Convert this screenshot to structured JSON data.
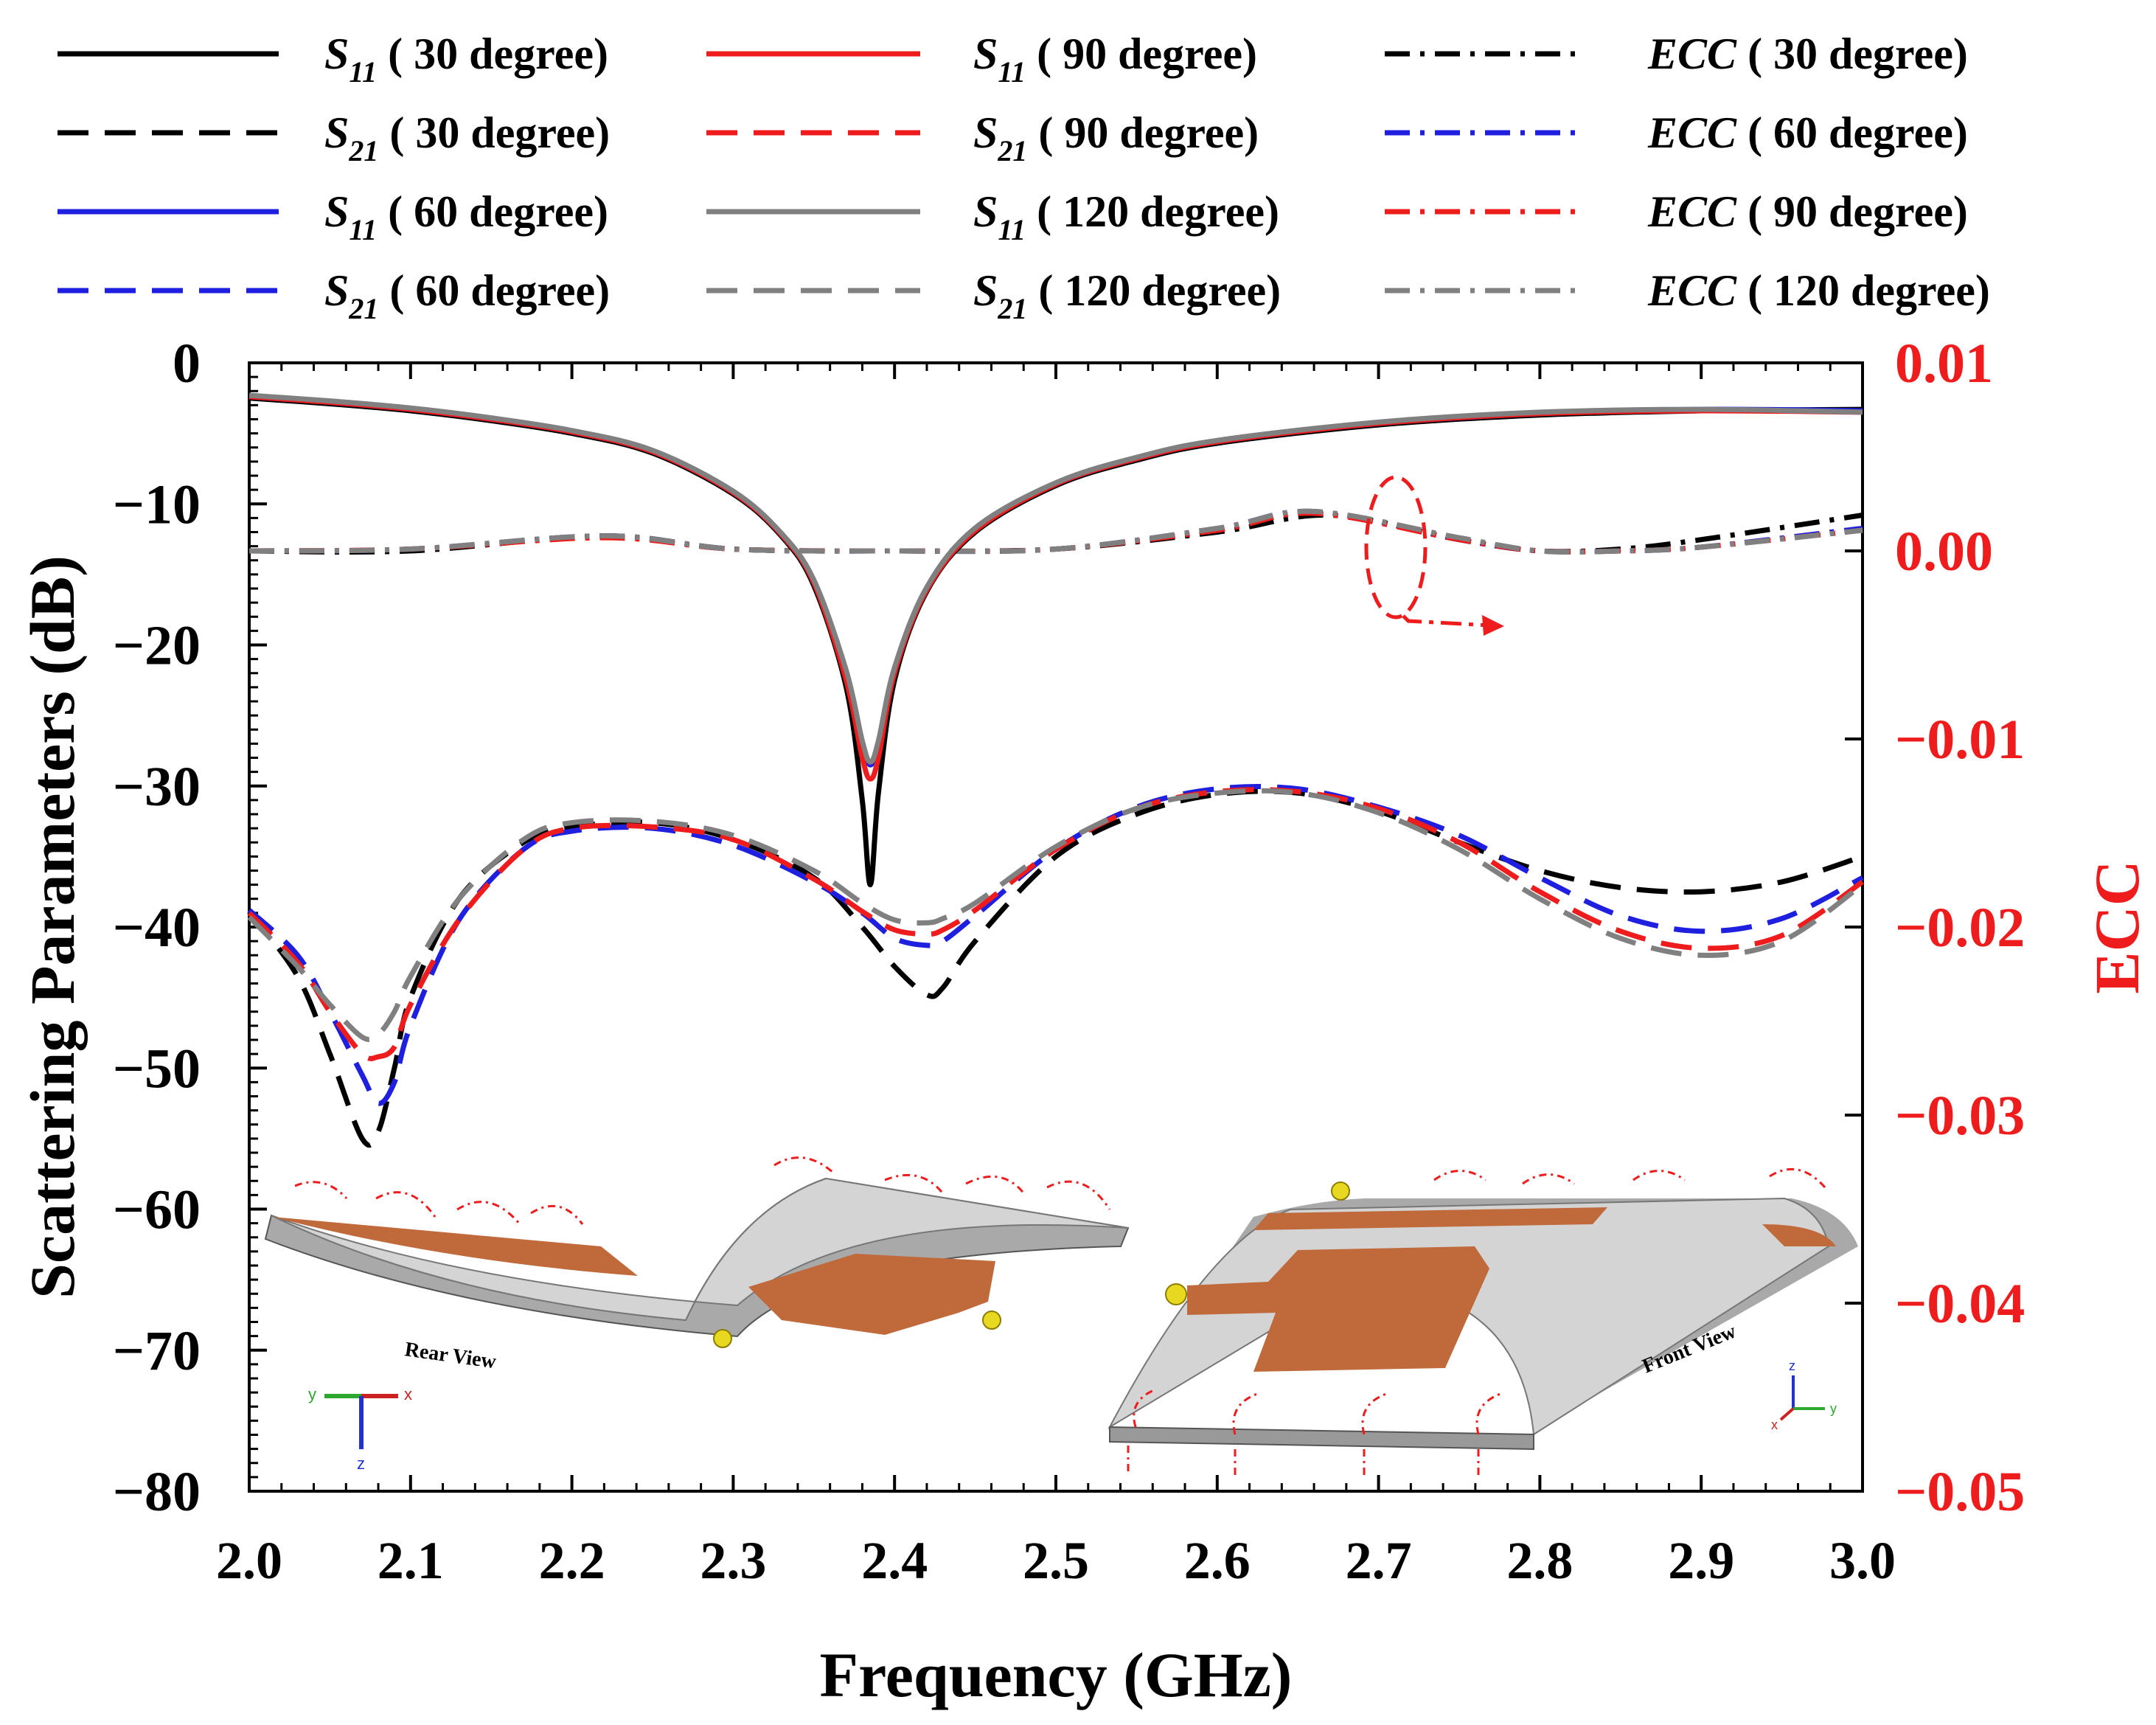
{
  "chart_data": {
    "type": "line",
    "xlabel": "Frequency (GHz)",
    "ylabel": "Scattering Parameters (dB)",
    "y2label": "ECC",
    "xlim": [
      2.0,
      3.0
    ],
    "ylim": [
      -80,
      0
    ],
    "y2lim": [
      -0.05,
      0.01
    ],
    "xticks": [
      "2.0",
      "2.1",
      "2.2",
      "2.3",
      "2.4",
      "2.5",
      "2.6",
      "2.7",
      "2.8",
      "2.9",
      "3.0"
    ],
    "yticks": [
      "0",
      "−10",
      "−20",
      "−30",
      "−40",
      "−50",
      "−60",
      "−70",
      "−80"
    ],
    "y2ticks": [
      "0.01",
      "0.00",
      "−0.01",
      "−0.02",
      "−0.03",
      "−0.04",
      "−0.05"
    ],
    "colors": {
      "c30": "#000000",
      "c60": "#1f1fe0",
      "c90": "#ee1c1c",
      "c120": "#808080",
      "ecc_axis": "#ee1c1c"
    },
    "legend": [
      {
        "param": "S",
        "sub": "11",
        "angle": "( 30 degree)",
        "color": "#000000",
        "dash": "solid"
      },
      {
        "param": "S",
        "sub": "21",
        "angle": "( 30 degree)",
        "color": "#000000",
        "dash": "dash"
      },
      {
        "param": "S",
        "sub": "11",
        "angle": "( 60 degree)",
        "color": "#1f1fe0",
        "dash": "solid"
      },
      {
        "param": "S",
        "sub": "21",
        "angle": "( 60 degree)",
        "color": "#1f1fe0",
        "dash": "dash"
      },
      {
        "param": "S",
        "sub": "11",
        "angle": "( 90 degree)",
        "color": "#ee1c1c",
        "dash": "solid"
      },
      {
        "param": "S",
        "sub": "21",
        "angle": "( 90 degree)",
        "color": "#ee1c1c",
        "dash": "dash"
      },
      {
        "param": "S",
        "sub": "11",
        "angle": "( 120 degree)",
        "color": "#808080",
        "dash": "solid"
      },
      {
        "param": "S",
        "sub": "21",
        "angle": "( 120 degree)",
        "color": "#808080",
        "dash": "dash"
      },
      {
        "param": "ECC",
        "sub": "",
        "angle": "( 30 degree)",
        "color": "#000000",
        "dash": "dashdot"
      },
      {
        "param": "ECC",
        "sub": "",
        "angle": "( 60 degree)",
        "color": "#1f1fe0",
        "dash": "dashdot"
      },
      {
        "param": "ECC",
        "sub": "",
        "angle": "( 90 degree)",
        "color": "#ee1c1c",
        "dash": "dashdot"
      },
      {
        "param": "ECC",
        "sub": "",
        "angle": "( 120 degree)",
        "color": "#808080",
        "dash": "dashdot"
      }
    ],
    "series": [
      {
        "name": "S11 (30 degree)",
        "axis": "left",
        "color": "#000000",
        "dash": "solid",
        "x": [
          2.0,
          2.05,
          2.1,
          2.15,
          2.2,
          2.25,
          2.3,
          2.33,
          2.35,
          2.37,
          2.38,
          2.385,
          2.39,
          2.4,
          2.42,
          2.45,
          2.5,
          2.55,
          2.6,
          2.7,
          2.8,
          2.9,
          3.0
        ],
        "y": [
          -2.5,
          -2.9,
          -3.4,
          -4.1,
          -5.0,
          -6.4,
          -9.3,
          -12.3,
          -15.8,
          -23.0,
          -31.0,
          -37.0,
          -30.5,
          -22.5,
          -16.2,
          -12.0,
          -8.7,
          -6.9,
          -5.7,
          -4.4,
          -3.7,
          -3.4,
          -3.3
        ]
      },
      {
        "name": "S11 (60 degree)",
        "axis": "left",
        "color": "#1f1fe0",
        "dash": "solid",
        "x": [
          2.0,
          2.05,
          2.1,
          2.15,
          2.2,
          2.25,
          2.3,
          2.33,
          2.35,
          2.37,
          2.38,
          2.385,
          2.39,
          2.4,
          2.42,
          2.45,
          2.5,
          2.55,
          2.6,
          2.7,
          2.8,
          2.9,
          3.0
        ],
        "y": [
          -2.4,
          -2.8,
          -3.3,
          -4.0,
          -4.9,
          -6.3,
          -9.2,
          -12.2,
          -15.5,
          -22.0,
          -27.0,
          -28.5,
          -27.0,
          -21.8,
          -16.0,
          -11.8,
          -8.6,
          -6.8,
          -5.6,
          -4.3,
          -3.6,
          -3.3,
          -3.4
        ]
      },
      {
        "name": "S11 (90 degree)",
        "axis": "left",
        "color": "#ee1c1c",
        "dash": "solid",
        "x": [
          2.0,
          2.05,
          2.1,
          2.15,
          2.2,
          2.25,
          2.3,
          2.33,
          2.35,
          2.37,
          2.38,
          2.385,
          2.39,
          2.4,
          2.42,
          2.45,
          2.5,
          2.55,
          2.6,
          2.7,
          2.8,
          2.9,
          3.0
        ],
        "y": [
          -2.4,
          -2.8,
          -3.3,
          -4.0,
          -4.9,
          -6.3,
          -9.2,
          -12.2,
          -15.6,
          -22.5,
          -28.0,
          -29.5,
          -28.0,
          -22.0,
          -16.1,
          -11.9,
          -8.6,
          -6.8,
          -5.6,
          -4.3,
          -3.6,
          -3.4,
          -3.5
        ]
      },
      {
        "name": "S11 (120 degree)",
        "axis": "left",
        "color": "#808080",
        "dash": "solid",
        "x": [
          2.0,
          2.05,
          2.1,
          2.15,
          2.2,
          2.25,
          2.3,
          2.33,
          2.35,
          2.37,
          2.38,
          2.385,
          2.39,
          2.4,
          2.42,
          2.45,
          2.5,
          2.55,
          2.6,
          2.7,
          2.8,
          2.9,
          3.0
        ],
        "y": [
          -2.3,
          -2.7,
          -3.2,
          -3.9,
          -4.8,
          -6.2,
          -9.1,
          -12.1,
          -15.4,
          -21.8,
          -26.8,
          -28.3,
          -26.8,
          -21.6,
          -15.9,
          -11.7,
          -8.5,
          -6.7,
          -5.5,
          -4.2,
          -3.5,
          -3.3,
          -3.5
        ]
      },
      {
        "name": "S21 (30 degree)",
        "axis": "left",
        "color": "#000000",
        "dash": "dash",
        "x": [
          2.0,
          2.03,
          2.05,
          2.07,
          2.08,
          2.09,
          2.1,
          2.13,
          2.17,
          2.2,
          2.25,
          2.3,
          2.35,
          2.38,
          2.4,
          2.42,
          2.43,
          2.45,
          2.5,
          2.55,
          2.6,
          2.65,
          2.7,
          2.75,
          2.8,
          2.85,
          2.9,
          2.95,
          3.0
        ],
        "y": [
          -38.9,
          -43.5,
          -49.0,
          -55.0,
          -54.5,
          -50.0,
          -45.0,
          -38.0,
          -34.0,
          -32.9,
          -32.6,
          -33.8,
          -36.5,
          -40.0,
          -42.8,
          -44.8,
          -44.3,
          -41.0,
          -35.0,
          -32.0,
          -30.6,
          -30.5,
          -31.8,
          -34.0,
          -36.0,
          -37.2,
          -37.5,
          -36.8,
          -35.0
        ]
      },
      {
        "name": "S21 (60 degree)",
        "axis": "left",
        "color": "#1f1fe0",
        "dash": "dash",
        "x": [
          2.0,
          2.03,
          2.05,
          2.07,
          2.08,
          2.09,
          2.1,
          2.13,
          2.17,
          2.2,
          2.25,
          2.3,
          2.35,
          2.38,
          2.4,
          2.42,
          2.43,
          2.45,
          2.5,
          2.55,
          2.6,
          2.65,
          2.7,
          2.75,
          2.8,
          2.85,
          2.9,
          2.95,
          3.0
        ],
        "y": [
          -38.8,
          -42.0,
          -46.0,
          -50.5,
          -52.5,
          -51.0,
          -47.0,
          -39.5,
          -34.5,
          -33.2,
          -33.0,
          -34.2,
          -36.8,
          -39.0,
          -40.8,
          -41.3,
          -41.0,
          -39.2,
          -34.5,
          -31.5,
          -30.2,
          -30.2,
          -31.5,
          -33.5,
          -36.5,
          -39.2,
          -40.3,
          -39.4,
          -36.5
        ]
      },
      {
        "name": "S21 (90 degree)",
        "axis": "left",
        "color": "#ee1c1c",
        "dash": "dash",
        "x": [
          2.0,
          2.03,
          2.05,
          2.07,
          2.08,
          2.09,
          2.1,
          2.13,
          2.17,
          2.2,
          2.25,
          2.3,
          2.35,
          2.38,
          2.4,
          2.42,
          2.43,
          2.45,
          2.5,
          2.55,
          2.6,
          2.65,
          2.7,
          2.75,
          2.8,
          2.85,
          2.9,
          2.95,
          3.0
        ],
        "y": [
          -39.0,
          -42.5,
          -46.0,
          -49.0,
          -49.2,
          -48.5,
          -45.5,
          -39.5,
          -34.5,
          -33.0,
          -32.9,
          -33.8,
          -36.6,
          -38.9,
          -40.2,
          -40.5,
          -40.2,
          -38.8,
          -34.5,
          -31.6,
          -30.4,
          -30.4,
          -31.6,
          -34.0,
          -37.5,
          -40.3,
          -41.5,
          -40.6,
          -36.8
        ]
      },
      {
        "name": "S21 (120 degree)",
        "axis": "left",
        "color": "#808080",
        "dash": "dash",
        "x": [
          2.0,
          2.03,
          2.05,
          2.07,
          2.08,
          2.09,
          2.1,
          2.13,
          2.17,
          2.2,
          2.25,
          2.3,
          2.35,
          2.38,
          2.4,
          2.42,
          2.43,
          2.45,
          2.5,
          2.55,
          2.6,
          2.65,
          2.7,
          2.75,
          2.8,
          2.85,
          2.9,
          2.95,
          3.0
        ],
        "y": [
          -39.3,
          -42.8,
          -45.5,
          -47.8,
          -47.6,
          -46.0,
          -43.5,
          -38.0,
          -33.8,
          -32.6,
          -32.5,
          -33.5,
          -36.0,
          -38.3,
          -39.5,
          -39.7,
          -39.4,
          -38.3,
          -34.3,
          -31.6,
          -30.5,
          -30.5,
          -31.9,
          -34.5,
          -38.0,
          -40.8,
          -42.0,
          -41.0,
          -37.0
        ]
      },
      {
        "name": "ECC (30 degree)",
        "axis": "right",
        "color": "#000000",
        "dash": "dashdot",
        "x": [
          2.0,
          2.1,
          2.22,
          2.3,
          2.4,
          2.5,
          2.6,
          2.67,
          2.75,
          2.8,
          2.85,
          2.9,
          3.0
        ],
        "y": [
          0.0,
          0.0,
          0.0008,
          0.0001,
          0.0,
          0.0001,
          0.001,
          0.0019,
          0.0006,
          0.0,
          0.0001,
          0.0006,
          0.0019
        ]
      },
      {
        "name": "ECC (60 degree)",
        "axis": "right",
        "color": "#1f1fe0",
        "dash": "dashdot",
        "x": [
          2.0,
          2.1,
          2.22,
          2.3,
          2.4,
          2.5,
          2.6,
          2.66,
          2.75,
          2.8,
          2.85,
          2.9,
          3.0
        ],
        "y": [
          0.0,
          0.0001,
          0.0008,
          0.0001,
          0.0,
          0.0001,
          0.0012,
          0.0021,
          0.0006,
          0.0,
          0.0,
          0.0002,
          0.0012
        ]
      },
      {
        "name": "ECC (90 degree)",
        "axis": "right",
        "color": "#ee1c1c",
        "dash": "dashdot",
        "x": [
          2.0,
          2.1,
          2.22,
          2.3,
          2.4,
          2.5,
          2.6,
          2.66,
          2.75,
          2.8,
          2.85,
          2.9,
          3.0
        ],
        "y": [
          0.0,
          0.0001,
          0.0007,
          0.0001,
          0.0,
          0.0001,
          0.0011,
          0.002,
          0.0006,
          0.0,
          0.0,
          0.0002,
          0.0011
        ]
      },
      {
        "name": "ECC (120 degree)",
        "axis": "right",
        "color": "#808080",
        "dash": "dashdot",
        "x": [
          2.0,
          2.1,
          2.22,
          2.3,
          2.4,
          2.5,
          2.6,
          2.66,
          2.75,
          2.8,
          2.85,
          2.9,
          3.0
        ],
        "y": [
          0.0,
          0.0001,
          0.0008,
          0.0001,
          0.0,
          0.0001,
          0.0012,
          0.0021,
          0.0007,
          0.0,
          0.0,
          0.0002,
          0.0011
        ]
      }
    ],
    "insets": [
      {
        "label": "Rear View",
        "axes": [
          "y",
          "x",
          "z"
        ]
      },
      {
        "label": "Front View",
        "axes": [
          "z",
          "y",
          "x"
        ]
      }
    ]
  }
}
